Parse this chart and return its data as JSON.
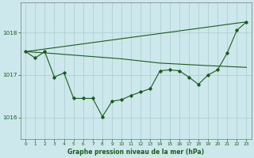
{
  "bg_color": "#cce8ec",
  "grid_color": "#aacccc",
  "line_color": "#1a5c1a",
  "title": "Graphe pression niveau de la mer (hPa)",
  "xlim": [
    -0.5,
    23.5
  ],
  "ylim": [
    1015.5,
    1018.7
  ],
  "yticks": [
    1016,
    1017,
    1018
  ],
  "xticks": [
    0,
    1,
    2,
    3,
    4,
    5,
    6,
    7,
    8,
    9,
    10,
    11,
    12,
    13,
    14,
    15,
    16,
    17,
    18,
    19,
    20,
    21,
    22,
    23
  ],
  "line1_x": [
    0,
    1,
    2,
    3,
    4,
    5,
    6,
    7,
    8,
    9,
    10,
    11,
    12,
    13,
    14,
    15,
    16,
    17,
    18,
    19,
    20,
    21,
    22,
    23
  ],
  "line1_y": [
    1017.55,
    1017.4,
    1017.55,
    1016.95,
    1017.05,
    1016.45,
    1016.45,
    1016.45,
    1016.02,
    1016.38,
    1016.42,
    1016.52,
    1016.6,
    1016.68,
    1017.1,
    1017.12,
    1017.1,
    1016.95,
    1016.78,
    1017.0,
    1017.12,
    1017.52,
    1018.05,
    1018.25
  ],
  "line2_x": [
    0,
    23
  ],
  "line2_y": [
    1017.55,
    1018.25
  ],
  "line3_x": [
    0,
    2,
    10,
    14,
    19,
    23
  ],
  "line3_y": [
    1017.55,
    1017.52,
    1017.38,
    1017.28,
    1017.22,
    1017.18
  ]
}
